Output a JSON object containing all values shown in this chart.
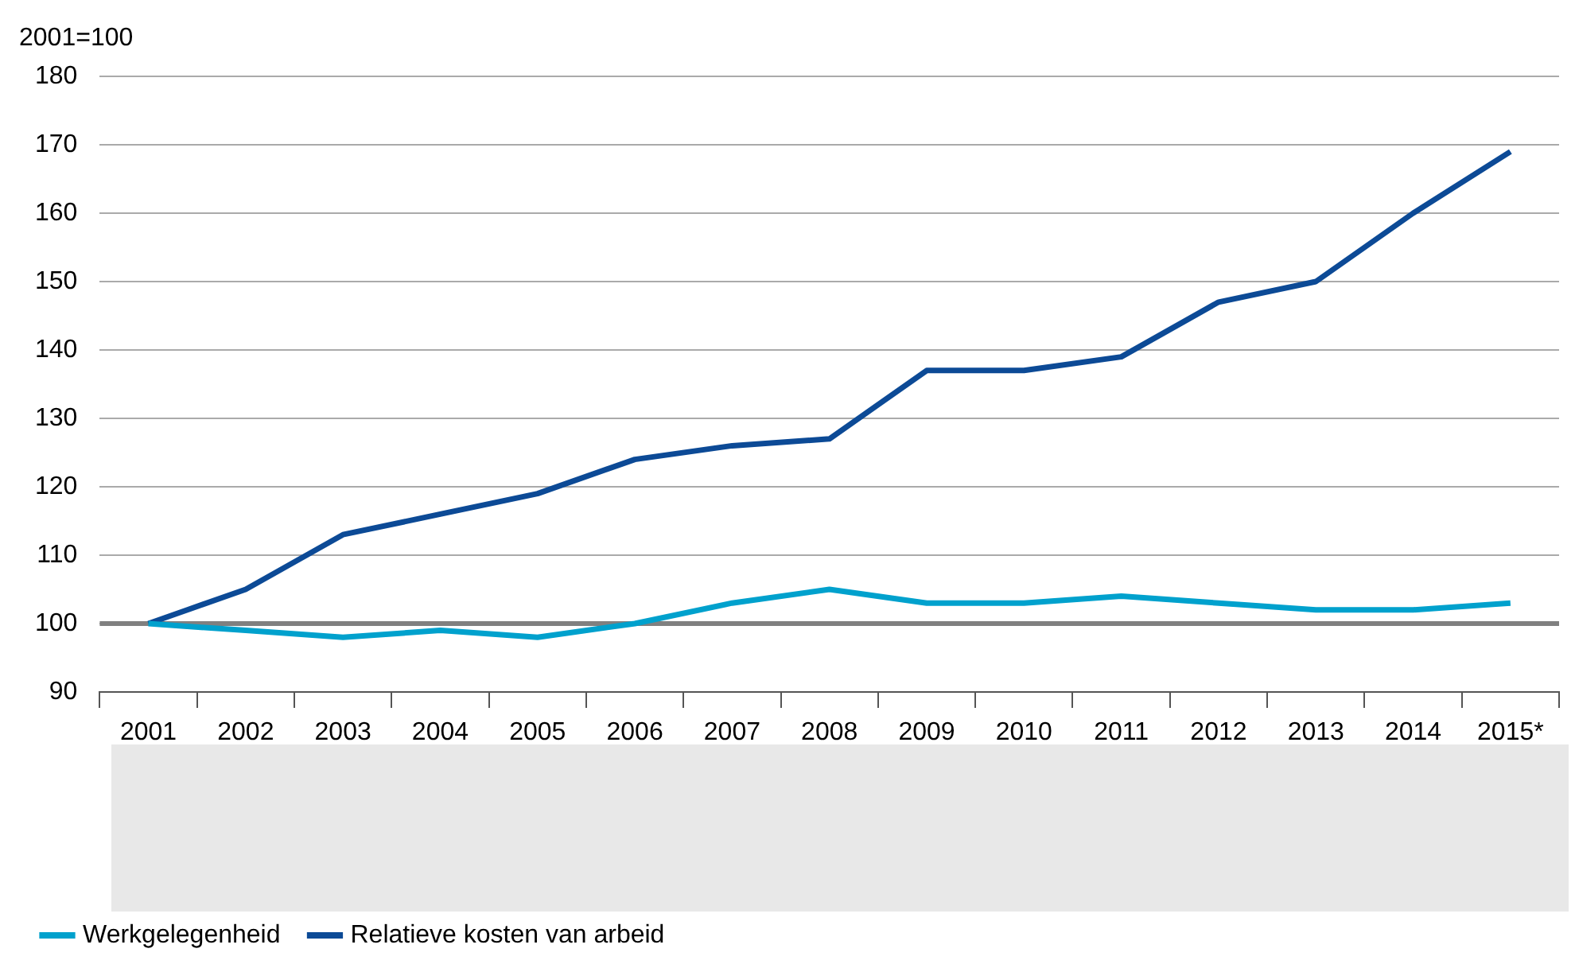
{
  "chart_data": {
    "type": "line",
    "ylabel": "2001=100",
    "categories": [
      "2001",
      "2002",
      "2003",
      "2004",
      "2005",
      "2006",
      "2007",
      "2008",
      "2009",
      "2010",
      "2011",
      "2012",
      "2013",
      "2014",
      "2015*"
    ],
    "series": [
      {
        "name": "Werkgelegenheid",
        "color": "#00a1cd",
        "values": [
          100,
          99,
          98,
          99,
          98,
          100,
          103,
          105,
          103,
          103,
          104,
          103,
          102,
          102,
          103
        ]
      },
      {
        "name": "Relatieve kosten van arbeid",
        "color": "#0c4a96",
        "values": [
          100,
          105,
          113,
          116,
          119,
          124,
          126,
          127,
          137,
          137,
          139,
          147,
          150,
          160,
          169
        ]
      }
    ],
    "ylim": [
      90,
      180
    ],
    "yticks": [
      90,
      100,
      110,
      120,
      130,
      140,
      150,
      160,
      170,
      180
    ],
    "grid": "y",
    "legend": "bottom left",
    "marker": "none",
    "line_style": "solid",
    "ref_lines": [
      {
        "axis": "y",
        "value": 100,
        "color": "#808080"
      }
    ]
  }
}
